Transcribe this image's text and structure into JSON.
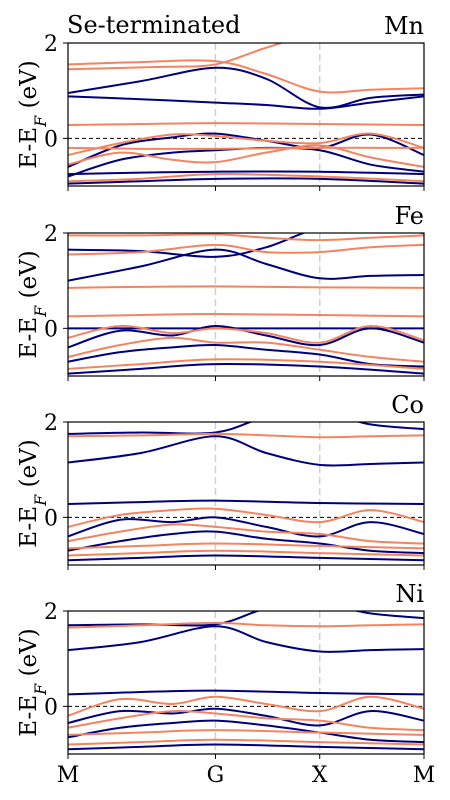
{
  "figure": {
    "corner_title": "Se-terminated",
    "k_path_labels": [
      "M",
      "G",
      "X",
      "M"
    ],
    "ylabel": "E-E",
    "ylabel_subscript": "F",
    "ylabel_unit": " (eV)"
  },
  "colors": {
    "spin_up": "#00007f",
    "spin_down": "#f4845f",
    "fermi_line": "#000000",
    "kpoint_line": "#d0d0d0"
  },
  "chart_data": [
    {
      "type": "line",
      "title": "Mn",
      "x_ticks": [
        0,
        1.414,
        2.414,
        3.414
      ],
      "x_tick_labels": [
        "M",
        "G",
        "X",
        "M"
      ],
      "ylim": [
        -1.0,
        2.0
      ],
      "y_ticks": [
        0,
        2
      ],
      "grid": false,
      "fermi_level": 0,
      "series": [
        {
          "spin": "up",
          "x": [
            0,
            0.7,
            1.414,
            1.9,
            2.414,
            2.9,
            3.414
          ],
          "y": [
            0.95,
            1.2,
            1.48,
            1.25,
            0.65,
            0.85,
            0.92
          ]
        },
        {
          "spin": "up",
          "x": [
            0,
            0.7,
            1.414,
            1.9,
            2.414,
            2.9,
            3.414
          ],
          "y": [
            0.88,
            0.82,
            0.75,
            0.7,
            0.62,
            0.75,
            0.88
          ]
        },
        {
          "spin": "up",
          "x": [
            0,
            0.5,
            1.0,
            1.414,
            1.9,
            2.414,
            2.9,
            3.414
          ],
          "y": [
            -0.6,
            -0.15,
            0.02,
            0.1,
            -0.05,
            -0.2,
            0.08,
            -0.35
          ]
        },
        {
          "spin": "up",
          "x": [
            0,
            0.5,
            1.0,
            1.414,
            1.9,
            2.414,
            2.9,
            3.414
          ],
          "y": [
            -0.8,
            -0.45,
            -0.3,
            -0.25,
            -0.2,
            -0.25,
            -0.55,
            -0.7
          ]
        },
        {
          "spin": "up",
          "x": [
            0,
            0.7,
            1.414,
            2.414,
            3.414
          ],
          "y": [
            -0.75,
            -0.72,
            -0.7,
            -0.7,
            -0.75
          ]
        },
        {
          "spin": "up",
          "x": [
            0,
            0.7,
            1.414,
            2.414,
            3.414
          ],
          "y": [
            -0.95,
            -0.9,
            -0.85,
            -0.85,
            -0.95
          ]
        },
        {
          "spin": "down",
          "x": [
            0,
            0.7,
            1.414,
            1.9,
            2.414,
            2.9,
            3.414
          ],
          "y": [
            1.55,
            1.6,
            1.62,
            1.35,
            0.98,
            1.02,
            1.05
          ]
        },
        {
          "spin": "down",
          "x": [
            0,
            0.9,
            1.414,
            1.9,
            2.414,
            2.9,
            3.414
          ],
          "y": [
            1.45,
            1.5,
            1.55,
            1.9,
            2.2,
            2.1,
            2.0
          ]
        },
        {
          "spin": "down",
          "x": [
            0,
            0.7,
            1.414,
            2.414,
            3.414
          ],
          "y": [
            0.28,
            0.3,
            0.32,
            0.3,
            0.28
          ]
        },
        {
          "spin": "down",
          "x": [
            0,
            0.5,
            1.0,
            1.414,
            1.9,
            2.414,
            2.9,
            3.414
          ],
          "y": [
            -0.35,
            -0.1,
            0.08,
            0.05,
            -0.05,
            -0.1,
            0.1,
            -0.2
          ]
        },
        {
          "spin": "down",
          "x": [
            0,
            0.5,
            1.0,
            1.414,
            1.9,
            2.414,
            2.9,
            3.414
          ],
          "y": [
            -0.55,
            -0.3,
            -0.45,
            -0.5,
            -0.3,
            -0.15,
            -0.4,
            -0.6
          ]
        },
        {
          "spin": "down",
          "x": [
            0,
            0.7,
            1.414,
            2.414,
            3.414
          ],
          "y": [
            -0.2,
            -0.22,
            -0.22,
            -0.2,
            -0.2
          ]
        },
        {
          "spin": "down",
          "x": [
            0,
            0.7,
            1.414,
            2.414,
            3.414
          ],
          "y": [
            -0.9,
            -0.85,
            -0.75,
            -0.8,
            -0.9
          ]
        }
      ]
    },
    {
      "type": "line",
      "title": "Fe",
      "x_ticks": [
        0,
        1.414,
        2.414,
        3.414
      ],
      "x_tick_labels": [
        "M",
        "G",
        "X",
        "M"
      ],
      "ylim": [
        -1.0,
        2.0
      ],
      "y_ticks": [
        0,
        2
      ],
      "grid": false,
      "fermi_level": 0,
      "series": [
        {
          "spin": "up",
          "x": [
            0,
            0.7,
            1.414,
            1.9,
            2.414,
            2.9,
            3.414
          ],
          "y": [
            1.65,
            1.62,
            1.5,
            1.7,
            2.1,
            2.1,
            2.0
          ]
        },
        {
          "spin": "up",
          "x": [
            0,
            0.7,
            1.414,
            1.9,
            2.414,
            2.9,
            3.414
          ],
          "y": [
            1.0,
            1.3,
            1.65,
            1.35,
            1.05,
            1.1,
            1.12
          ]
        },
        {
          "spin": "up",
          "x": [
            0,
            0.7,
            1.414,
            2.414,
            3.414
          ],
          "y": [
            0.0,
            0.0,
            0.0,
            0.0,
            0.0
          ]
        },
        {
          "spin": "up",
          "x": [
            0,
            0.5,
            1.0,
            1.414,
            1.9,
            2.414,
            2.9,
            3.414
          ],
          "y": [
            -0.4,
            -0.05,
            -0.15,
            0.05,
            -0.15,
            -0.35,
            0.0,
            -0.3
          ]
        },
        {
          "spin": "up",
          "x": [
            0,
            0.5,
            1.0,
            1.414,
            1.9,
            2.414,
            2.9,
            3.414
          ],
          "y": [
            -0.7,
            -0.5,
            -0.4,
            -0.35,
            -0.45,
            -0.55,
            -0.75,
            -0.8
          ]
        },
        {
          "spin": "up",
          "x": [
            0,
            0.7,
            1.414,
            2.414,
            3.414
          ],
          "y": [
            -0.95,
            -0.85,
            -0.75,
            -0.8,
            -0.95
          ]
        },
        {
          "spin": "down",
          "x": [
            0,
            0.7,
            1.414,
            1.9,
            2.414,
            2.9,
            3.414
          ],
          "y": [
            1.95,
            1.95,
            1.97,
            1.9,
            1.85,
            1.9,
            1.95
          ]
        },
        {
          "spin": "down",
          "x": [
            0,
            0.7,
            1.414,
            1.9,
            2.414,
            2.9,
            3.414
          ],
          "y": [
            1.55,
            1.6,
            1.75,
            1.6,
            1.6,
            1.7,
            1.75
          ]
        },
        {
          "spin": "down",
          "x": [
            0,
            0.7,
            1.414,
            2.414,
            3.414
          ],
          "y": [
            0.85,
            0.87,
            0.88,
            0.86,
            0.85
          ]
        },
        {
          "spin": "down",
          "x": [
            0,
            0.7,
            1.414,
            2.414,
            3.414
          ],
          "y": [
            0.25,
            0.28,
            0.3,
            0.28,
            0.25
          ]
        },
        {
          "spin": "down",
          "x": [
            0,
            0.5,
            1.0,
            1.414,
            1.9,
            2.414,
            2.9,
            3.414
          ],
          "y": [
            -0.2,
            0.05,
            -0.1,
            0.0,
            -0.1,
            -0.3,
            0.05,
            -0.25
          ]
        },
        {
          "spin": "down",
          "x": [
            0,
            0.5,
            1.0,
            1.414,
            1.9,
            2.414,
            2.9,
            3.414
          ],
          "y": [
            -0.6,
            -0.35,
            -0.2,
            -0.3,
            -0.3,
            -0.45,
            -0.6,
            -0.7
          ]
        },
        {
          "spin": "down",
          "x": [
            0,
            0.7,
            1.414,
            2.414,
            3.414
          ],
          "y": [
            -0.85,
            -0.75,
            -0.65,
            -0.7,
            -0.85
          ]
        }
      ]
    },
    {
      "type": "line",
      "title": "Co",
      "x_ticks": [
        0,
        1.414,
        2.414,
        3.414
      ],
      "x_tick_labels": [
        "M",
        "G",
        "X",
        "M"
      ],
      "ylim": [
        -1.0,
        2.0
      ],
      "y_ticks": [
        0,
        2
      ],
      "grid": false,
      "fermi_level": 0,
      "series": [
        {
          "spin": "up",
          "x": [
            0,
            0.7,
            1.414,
            1.9,
            2.414,
            2.9,
            3.414
          ],
          "y": [
            1.75,
            1.78,
            1.78,
            2.1,
            2.2,
            1.95,
            1.85
          ]
        },
        {
          "spin": "up",
          "x": [
            0,
            0.7,
            1.414,
            1.9,
            2.414,
            2.9,
            3.414
          ],
          "y": [
            1.15,
            1.35,
            1.7,
            1.35,
            1.1,
            1.12,
            1.15
          ]
        },
        {
          "spin": "up",
          "x": [
            0,
            0.7,
            1.414,
            2.414,
            3.414
          ],
          "y": [
            0.28,
            0.32,
            0.35,
            0.3,
            0.28
          ]
        },
        {
          "spin": "up",
          "x": [
            0,
            0.5,
            1.0,
            1.414,
            1.9,
            2.414,
            2.9,
            3.414
          ],
          "y": [
            -0.4,
            -0.05,
            -0.1,
            0.0,
            -0.2,
            -0.4,
            -0.1,
            -0.35
          ]
        },
        {
          "spin": "up",
          "x": [
            0,
            0.5,
            1.0,
            1.414,
            1.9,
            2.414,
            2.9,
            3.414
          ],
          "y": [
            -0.7,
            -0.5,
            -0.35,
            -0.3,
            -0.45,
            -0.55,
            -0.7,
            -0.75
          ]
        },
        {
          "spin": "up",
          "x": [
            0,
            0.7,
            1.414,
            2.414,
            3.414
          ],
          "y": [
            -0.9,
            -0.85,
            -0.8,
            -0.85,
            -0.9
          ]
        },
        {
          "spin": "down",
          "x": [
            0,
            0.7,
            1.414,
            1.9,
            2.414,
            2.9,
            3.414
          ],
          "y": [
            1.7,
            1.72,
            1.75,
            1.72,
            1.68,
            1.7,
            1.72
          ]
        },
        {
          "spin": "down",
          "x": [
            0,
            0.5,
            1.0,
            1.414,
            1.9,
            2.414,
            2.9,
            3.414
          ],
          "y": [
            -0.2,
            0.05,
            0.15,
            0.18,
            0.05,
            -0.1,
            0.15,
            -0.1
          ]
        },
        {
          "spin": "down",
          "x": [
            0,
            0.5,
            1.0,
            1.414,
            1.9,
            2.414,
            2.9,
            3.414
          ],
          "y": [
            -0.5,
            -0.3,
            -0.15,
            -0.2,
            -0.3,
            -0.35,
            -0.5,
            -0.55
          ]
        },
        {
          "spin": "down",
          "x": [
            0,
            0.7,
            1.414,
            2.414,
            3.414
          ],
          "y": [
            -0.65,
            -0.6,
            -0.55,
            -0.6,
            -0.65
          ]
        },
        {
          "spin": "down",
          "x": [
            0,
            0.7,
            1.414,
            2.414,
            3.414
          ],
          "y": [
            -0.8,
            -0.75,
            -0.7,
            -0.75,
            -0.8
          ]
        }
      ]
    },
    {
      "type": "line",
      "title": "Ni",
      "x_ticks": [
        0,
        1.414,
        2.414,
        3.414
      ],
      "x_tick_labels": [
        "M",
        "G",
        "X",
        "M"
      ],
      "ylim": [
        -1.0,
        2.0
      ],
      "y_ticks": [
        0,
        2
      ],
      "grid": false,
      "fermi_level": 0,
      "series": [
        {
          "spin": "up",
          "x": [
            0,
            0.7,
            1.414,
            1.9,
            2.414,
            2.9,
            3.414
          ],
          "y": [
            1.7,
            1.72,
            1.72,
            2.05,
            2.15,
            1.95,
            1.85
          ]
        },
        {
          "spin": "up",
          "x": [
            0,
            0.7,
            1.414,
            1.9,
            2.414,
            2.9,
            3.414
          ],
          "y": [
            1.18,
            1.35,
            1.68,
            1.35,
            1.15,
            1.18,
            1.2
          ]
        },
        {
          "spin": "up",
          "x": [
            0,
            0.7,
            1.414,
            2.414,
            3.414
          ],
          "y": [
            0.25,
            0.3,
            0.33,
            0.28,
            0.25
          ]
        },
        {
          "spin": "up",
          "x": [
            0,
            0.5,
            1.0,
            1.414,
            1.9,
            2.414,
            2.9,
            3.414
          ],
          "y": [
            -0.35,
            -0.1,
            -0.15,
            -0.05,
            -0.2,
            -0.4,
            -0.1,
            -0.3
          ]
        },
        {
          "spin": "up",
          "x": [
            0,
            0.5,
            1.0,
            1.414,
            1.9,
            2.414,
            2.9,
            3.414
          ],
          "y": [
            -0.65,
            -0.45,
            -0.35,
            -0.3,
            -0.4,
            -0.55,
            -0.7,
            -0.75
          ]
        },
        {
          "spin": "up",
          "x": [
            0,
            0.7,
            1.414,
            2.414,
            3.414
          ],
          "y": [
            -0.9,
            -0.85,
            -0.8,
            -0.85,
            -0.9
          ]
        },
        {
          "spin": "down",
          "x": [
            0,
            0.7,
            1.414,
            1.9,
            2.414,
            2.9,
            3.414
          ],
          "y": [
            1.65,
            1.7,
            1.75,
            1.7,
            1.68,
            1.7,
            1.72
          ]
        },
        {
          "spin": "down",
          "x": [
            0,
            0.5,
            1.0,
            1.414,
            1.9,
            2.414,
            2.9,
            3.414
          ],
          "y": [
            -0.2,
            0.15,
            0.05,
            0.2,
            0.05,
            -0.1,
            0.2,
            -0.05
          ]
        },
        {
          "spin": "down",
          "x": [
            0,
            0.5,
            1.0,
            1.414,
            1.9,
            2.414,
            2.9,
            3.414
          ],
          "y": [
            -0.45,
            -0.25,
            -0.1,
            -0.15,
            -0.25,
            -0.3,
            -0.45,
            -0.5
          ]
        },
        {
          "spin": "down",
          "x": [
            0,
            0.7,
            1.414,
            2.414,
            3.414
          ],
          "y": [
            -0.6,
            -0.55,
            -0.5,
            -0.55,
            -0.6
          ]
        },
        {
          "spin": "down",
          "x": [
            0,
            0.7,
            1.414,
            2.414,
            3.414
          ],
          "y": [
            -0.8,
            -0.75,
            -0.7,
            -0.75,
            -0.8
          ]
        }
      ]
    }
  ]
}
